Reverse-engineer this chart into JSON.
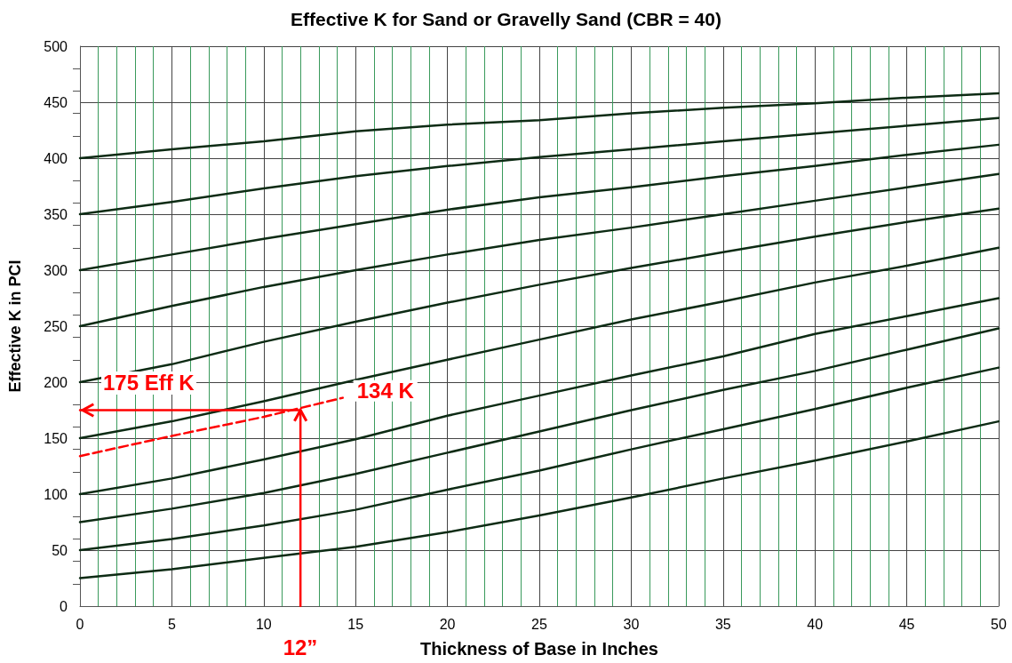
{
  "chart_data": {
    "type": "line",
    "title": "Effective K for Sand or Gravelly Sand (CBR = 40)",
    "xlabel": "Thickness of Base in Inches",
    "ylabel": "Effective K in PCI",
    "xlim": [
      0,
      50
    ],
    "xticks": [
      0,
      {
        "value": 1,
        "label": null
      },
      {
        "value": 2,
        "label": null
      },
      {
        "value": 3,
        "label": null
      },
      {
        "value": 4,
        "label": null
      },
      5,
      {
        "value": 6,
        "label": null
      },
      {
        "value": 7,
        "label": null
      },
      {
        "value": 8,
        "label": null
      },
      {
        "value": 9,
        "label": null
      },
      10,
      {
        "value": 11,
        "label": null
      },
      {
        "value": 12,
        "label": null
      },
      {
        "value": 13,
        "label": null
      },
      {
        "value": 14,
        "label": null
      },
      15,
      {
        "value": 16,
        "label": null
      },
      {
        "value": 17,
        "label": null
      },
      {
        "value": 18,
        "label": null
      },
      {
        "value": 19,
        "label": null
      },
      20,
      {
        "value": 21,
        "label": null
      },
      {
        "value": 22,
        "label": null
      },
      {
        "value": 23,
        "label": null
      },
      {
        "value": 24,
        "label": null
      },
      25,
      {
        "value": 26,
        "label": null
      },
      {
        "value": 27,
        "label": null
      },
      {
        "value": 28,
        "label": null
      },
      {
        "value": 29,
        "label": null
      },
      30,
      {
        "value": 31,
        "label": null
      },
      {
        "value": 32,
        "label": null
      },
      {
        "value": 33,
        "label": null
      },
      {
        "value": 34,
        "label": null
      },
      35,
      {
        "value": 36,
        "label": null
      },
      {
        "value": 37,
        "label": null
      },
      {
        "value": 38,
        "label": null
      },
      {
        "value": 39,
        "label": null
      },
      40,
      {
        "value": 41,
        "label": null
      },
      {
        "value": 42,
        "label": null
      },
      {
        "value": 43,
        "label": null
      },
      {
        "value": 44,
        "label": null
      },
      45,
      {
        "value": 46,
        "label": null
      },
      {
        "value": 47,
        "label": null
      },
      {
        "value": 48,
        "label": null
      },
      {
        "value": 49,
        "label": null
      },
      50
    ],
    "ylim": [
      0,
      500
    ],
    "yticks": [
      0,
      50,
      100,
      150,
      200,
      250,
      300,
      350,
      400,
      450,
      500
    ],
    "grid": true,
    "legend": false,
    "marker": "none",
    "line_style": "solid",
    "x": [
      0,
      5,
      10,
      15,
      20,
      25,
      30,
      35,
      40,
      45,
      50
    ],
    "series": [
      {
        "color": "#0d2b14",
        "values": [
          400,
          408,
          415,
          424,
          430,
          434,
          440,
          445,
          449,
          454,
          458
        ]
      },
      {
        "color": "#0d2b14",
        "values": [
          350,
          361,
          373,
          384,
          393,
          401,
          408,
          415,
          422,
          429,
          436
        ]
      },
      {
        "color": "#0d2b14",
        "values": [
          300,
          314,
          328,
          341,
          354,
          365,
          374,
          384,
          393,
          403,
          412
        ]
      },
      {
        "color": "#0d2b14",
        "values": [
          250,
          268,
          285,
          300,
          314,
          327,
          338,
          350,
          362,
          374,
          386
        ]
      },
      {
        "color": "#0d2b14",
        "values": [
          200,
          216,
          236,
          254,
          271,
          287,
          302,
          316,
          330,
          343,
          355
        ]
      },
      {
        "color": "#0d2b14",
        "values": [
          150,
          165,
          183,
          202,
          220,
          238,
          256,
          272,
          289,
          304,
          320
        ]
      },
      {
        "color": "#0d2b14",
        "values": [
          100,
          114,
          131,
          149,
          170,
          188,
          206,
          223,
          243,
          259,
          275
        ]
      },
      {
        "color": "#0d2b14",
        "values": [
          75,
          87,
          101,
          118,
          137,
          156,
          175,
          193,
          210,
          229,
          248
        ]
      },
      {
        "color": "#0d2b14",
        "values": [
          50,
          60,
          72,
          86,
          104,
          121,
          140,
          158,
          176,
          195,
          213
        ]
      },
      {
        "color": "#0d2b14",
        "values": [
          25,
          33,
          43,
          53,
          66,
          81,
          97,
          114,
          130,
          147,
          165
        ]
      },
      {
        "name": "134 K",
        "color": "#ff0000",
        "line_style": "dashed",
        "x": [
          0,
          5,
          10,
          14.3
        ],
        "values": [
          134,
          152,
          169,
          186
        ]
      },
      {
        "color": "#ff0000",
        "x": [
          12,
          12,
          0
        ],
        "values": [
          0,
          175,
          175
        ]
      }
    ],
    "annotations": [
      "175 Eff K",
      "12”"
    ]
  }
}
